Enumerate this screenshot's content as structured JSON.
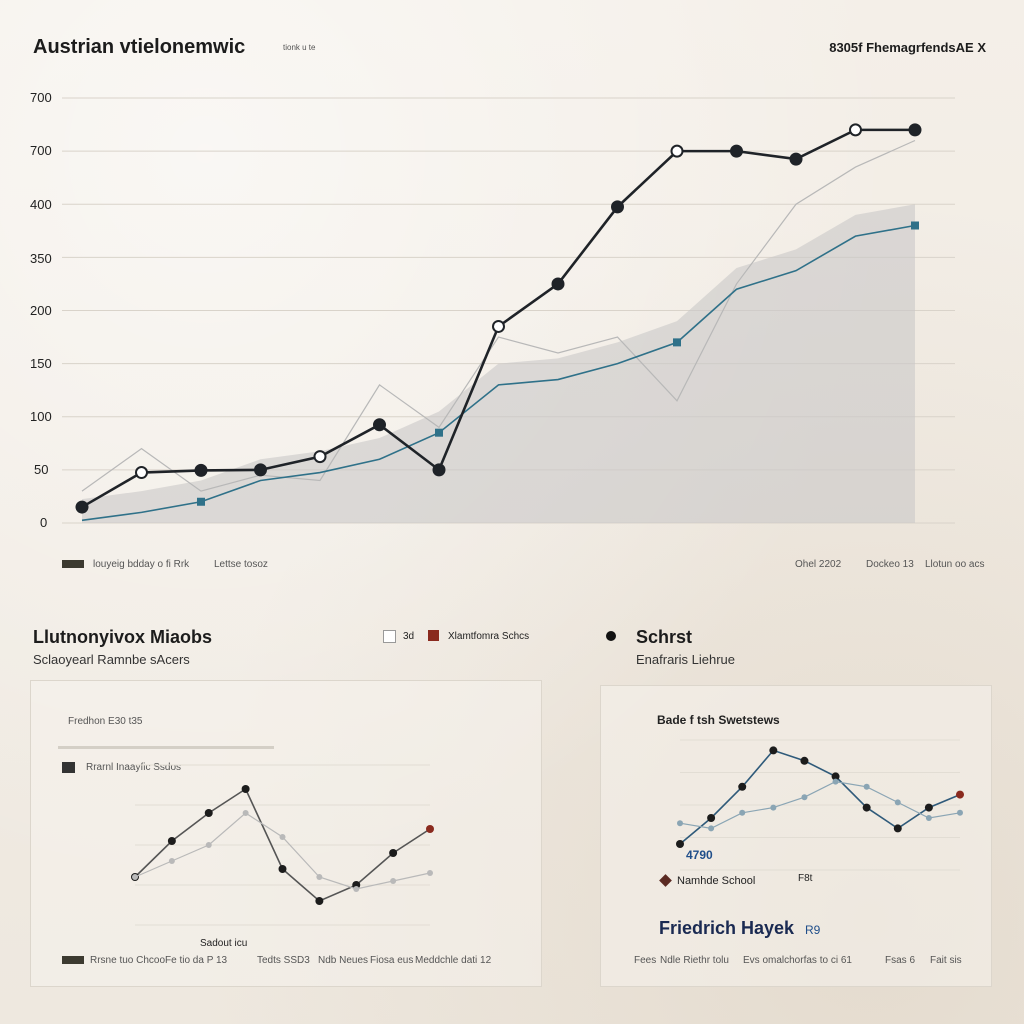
{
  "header": {
    "title": "Austrian vtielonemwic",
    "title_suffix": "tionk u te",
    "right_label": "8305f FhemagrfendsAE X"
  },
  "main_chart_footer": {
    "left": "louyeig bdday o fi Rrk",
    "left2": "Lettse tosoz",
    "r1": "Ohel 2202",
    "r2": "Dockeo 13",
    "r3": "Llotun oo acs"
  },
  "panel_left": {
    "title": "Llutnonyivox Miaobs",
    "subtitle": "Sclaoyearl Ramnbe sAcers",
    "legend1": "3d",
    "legend2": "Xlamtfomra Schcs",
    "inner_label1": "Fredhon E30 t35",
    "inner_label2": "Rrarnl Inaayfic Ssdos",
    "axis_label": "Sadout icu",
    "footer": [
      "Rrsne tuo Chcoo",
      "Fe tio da P 13",
      "Tedts SSD3",
      "Ndb Neues",
      "Fiosa eus",
      "Meddchle dati 12"
    ]
  },
  "panel_right": {
    "title": "Schrst",
    "subtitle": "Enafraris Liehrue",
    "inner_title": "Bade f tsh Swetstews",
    "value_label": "4790",
    "school_label": "Namhde School",
    "mark_label": "F8t",
    "name_label": "Friedrich Hayek",
    "name_suffix": "R9",
    "footer": [
      "Fees",
      "Ndle Riethr tolu",
      "Evs omalchorfas to ci 61",
      "Fsas 6",
      "Fait sis"
    ]
  },
  "colors": {
    "dark_line": "#1f2328",
    "blue_line": "#2f7189",
    "gray_line": "#b8b8b8",
    "accent_gold": "#c9a233",
    "accent_red": "#8a2a1e",
    "area_fill": "#c9c8c8"
  },
  "chart_data": [
    {
      "type": "line",
      "title": "Austrian vtielonemwic",
      "ytick_labels": [
        "0",
        "50",
        "100",
        "150",
        "200",
        "350",
        "400",
        "700",
        "700"
      ],
      "x": [
        1,
        2,
        3,
        4,
        5,
        6,
        7,
        8,
        9,
        10,
        11,
        12,
        13,
        14,
        15
      ],
      "series": [
        {
          "values": [
            0.3,
            0.95,
            0.99,
            1.0,
            1.25,
            1.85,
            1.0,
            3.7,
            4.5,
            5.95,
            7.0,
            7.0,
            6.85,
            7.4,
            7.4
          ]
        },
        {
          "values": [
            0.05,
            0.2,
            0.4,
            0.8,
            0.95,
            1.2,
            1.7,
            2.6,
            2.7,
            3.0,
            3.4,
            4.4,
            4.75,
            5.4,
            5.6
          ]
        },
        {
          "values": [
            0.6,
            1.4,
            0.6,
            0.9,
            0.8,
            2.6,
            1.8,
            3.5,
            3.2,
            3.5,
            2.3,
            4.5,
            6.0,
            6.7,
            7.2
          ]
        }
      ],
      "ylim": [
        0,
        8
      ]
    },
    {
      "type": "line",
      "title": "Llutnonyivox Miaobs",
      "series": [
        {
          "values": [
            1.2,
            2.1,
            2.8,
            3.4,
            1.4,
            0.6,
            1.0,
            1.8,
            2.4
          ]
        },
        {
          "values": [
            1.2,
            1.6,
            2.0,
            2.8,
            2.2,
            1.2,
            0.9,
            1.1,
            1.3
          ]
        }
      ],
      "ylim": [
        0,
        4
      ]
    },
    {
      "type": "line",
      "title": "Schrst",
      "series": [
        {
          "values": [
            1.0,
            2.0,
            3.2,
            4.6,
            4.2,
            3.6,
            2.4,
            1.6,
            2.4,
            2.9
          ]
        },
        {
          "values": [
            1.8,
            1.6,
            2.2,
            2.4,
            2.8,
            3.4,
            3.2,
            2.6,
            2.0,
            2.2
          ]
        }
      ],
      "ylim": [
        0,
        5
      ]
    }
  ]
}
